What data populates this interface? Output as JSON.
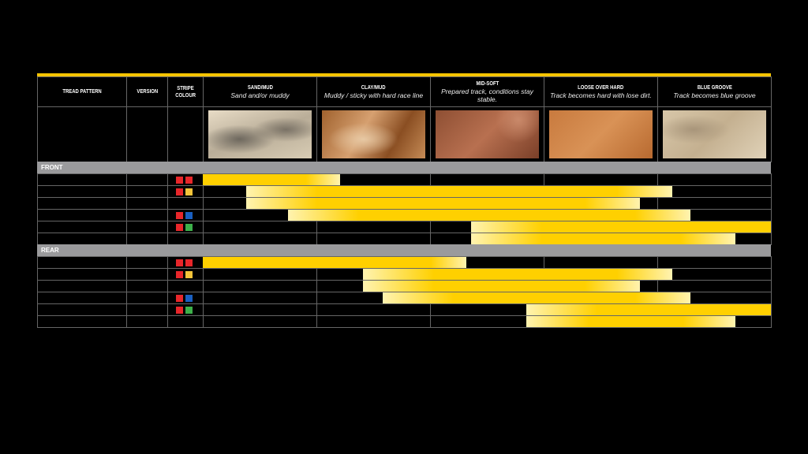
{
  "header": {
    "columns": [
      {
        "title": "TREAD PATTERN"
      },
      {
        "title": "VERSION"
      },
      {
        "title": "STRIPE COLOUR"
      }
    ],
    "surfaces": [
      {
        "title": "SAND/MUD",
        "subtitle": "Sand and/or muddy",
        "image": "sand"
      },
      {
        "title": "CLAY/MUD",
        "subtitle": "Muddy / sticky with hard race line",
        "image": "clay"
      },
      {
        "title": "MID-SOFT",
        "subtitle": "Prepared track, conditions stay stable.",
        "image": "soil"
      },
      {
        "title": "LOOSE OVER HARD",
        "subtitle": "Track becomes hard with lose dirt.",
        "image": "dirt"
      },
      {
        "title": "BLUE GROOVE",
        "subtitle": "Track becomes blue groove",
        "image": "groove"
      }
    ]
  },
  "colors": {
    "accent": "#f5c400",
    "bar": "#ffd000",
    "bar_fade": "#fff3b0",
    "band": "#9a9a9c",
    "stripe_red": "#e8262a",
    "stripe_yellow": "#f5c43a",
    "stripe_blue": "#1a5fc0",
    "stripe_green": "#3db04a"
  },
  "chart_data": {
    "type": "table",
    "x_categories": [
      "SAND/MUD",
      "CLAY/MUD",
      "MID-SOFT",
      "LOOSE OVER HARD",
      "BLUE GROOVE"
    ],
    "x_range_units": "surface columns (0 = left edge of SAND/MUD, 5 = right edge of BLUE GROOVE)",
    "sections": [
      {
        "label": "FRONT",
        "rows": [
          {
            "stripes": [
              "red",
              "red"
            ],
            "range": [
              0,
              1.21
            ]
          },
          {
            "stripes": [
              "red",
              "yellow"
            ],
            "range": [
              0.38,
              4.13
            ]
          },
          {
            "stripes": [],
            "range": [
              0.38,
              3.85
            ]
          },
          {
            "stripes": [
              "red",
              "blue"
            ],
            "range": [
              0.75,
              4.29
            ]
          },
          {
            "stripes": [
              "red",
              "green"
            ],
            "range": [
              2.36,
              5
            ]
          },
          {
            "stripes": [],
            "range": [
              2.36,
              4.69
            ]
          }
        ]
      },
      {
        "label": "REAR",
        "rows": [
          {
            "stripes": [
              "red",
              "red"
            ],
            "range": [
              0,
              2.32
            ]
          },
          {
            "stripes": [
              "red",
              "yellow"
            ],
            "range": [
              1.41,
              4.13
            ]
          },
          {
            "stripes": [],
            "range": [
              1.41,
              3.85
            ]
          },
          {
            "stripes": [
              "red",
              "blue"
            ],
            "range": [
              1.58,
              4.29
            ]
          },
          {
            "stripes": [
              "red",
              "green"
            ],
            "range": [
              2.85,
              5
            ]
          },
          {
            "stripes": [],
            "range": [
              2.85,
              4.69
            ]
          }
        ]
      }
    ]
  }
}
